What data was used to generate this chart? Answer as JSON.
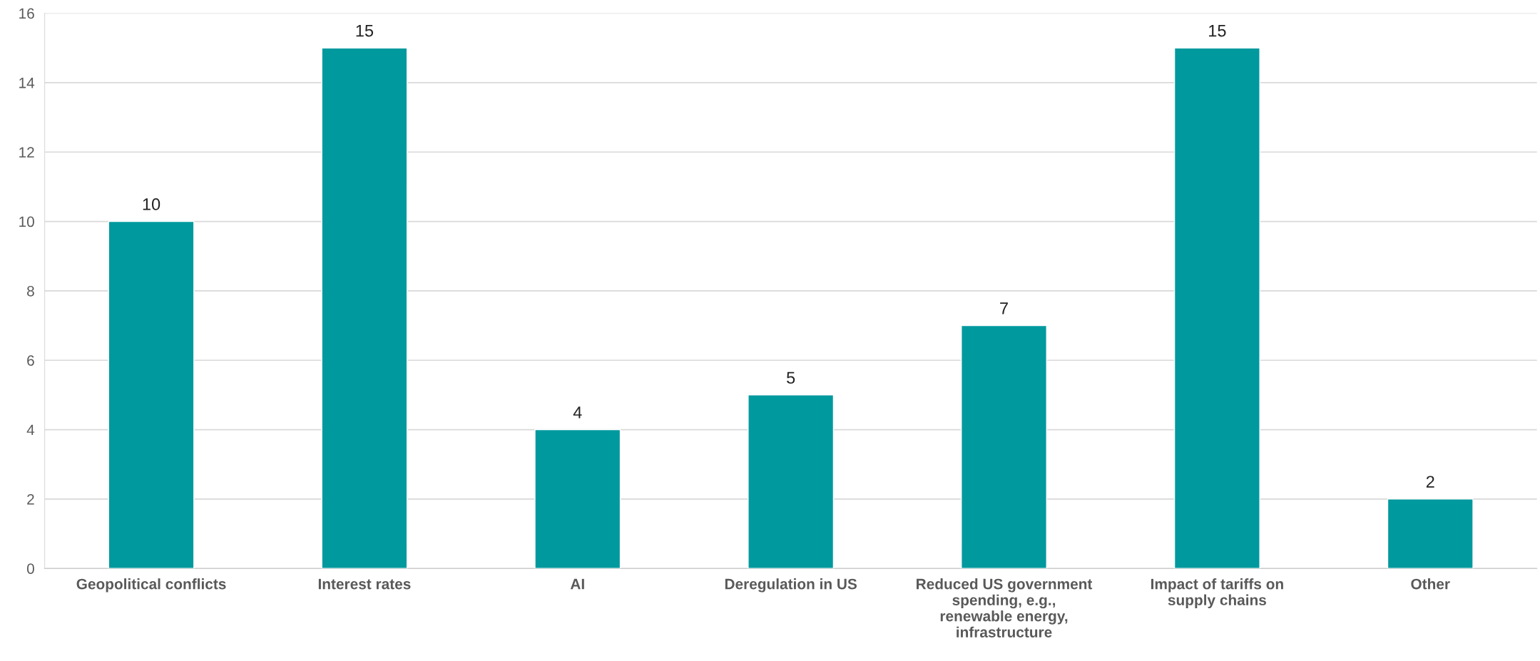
{
  "chart_data": {
    "type": "bar",
    "categories": [
      "Geopolitical conflicts",
      "Interest rates",
      "AI",
      "Deregulation in US",
      "Reduced US government\nspending, e.g.,\nrenewable energy,\ninfrastructure",
      "Impact of tariffs on\nsupply chains",
      "Other"
    ],
    "values": [
      10,
      15,
      4,
      5,
      7,
      15,
      2
    ],
    "color": "#00999e",
    "ylim": [
      0,
      16
    ],
    "yticks": [
      0,
      2,
      4,
      6,
      8,
      10,
      12,
      14,
      16
    ],
    "grid": "y",
    "data_labels": true
  }
}
